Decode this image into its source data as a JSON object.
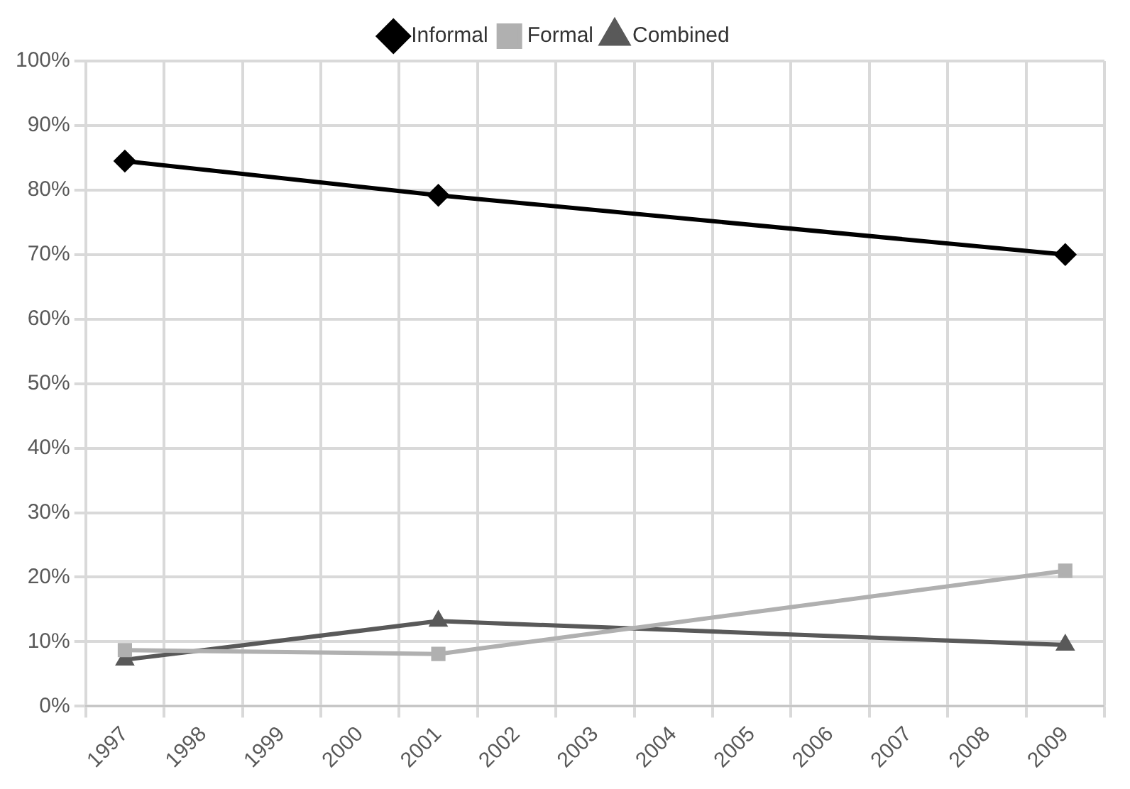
{
  "chart_data": {
    "type": "line",
    "categories": [
      "1997",
      "1998",
      "1999",
      "2000",
      "2001",
      "2002",
      "2003",
      "2004",
      "2005",
      "2006",
      "2007",
      "2008",
      "2009"
    ],
    "series": [
      {
        "name": "Informal",
        "color": "#000000",
        "marker": "diamond",
        "values": [
          84.5,
          null,
          null,
          null,
          79.2,
          null,
          null,
          null,
          null,
          null,
          null,
          null,
          70
        ]
      },
      {
        "name": "Formal",
        "color": "#b0b0b0",
        "marker": "square",
        "values": [
          8.7,
          null,
          null,
          null,
          8.1,
          null,
          null,
          null,
          null,
          null,
          null,
          null,
          21
        ]
      },
      {
        "name": "Combined",
        "color": "#595959",
        "marker": "triangle",
        "values": [
          7.2,
          null,
          null,
          null,
          13.2,
          null,
          null,
          null,
          null,
          null,
          null,
          null,
          9.5
        ]
      }
    ],
    "ylim": [
      0,
      100
    ],
    "yticks": [
      {
        "value": 0,
        "label": "0%"
      },
      {
        "value": 10,
        "label": "10%"
      },
      {
        "value": 20,
        "label": "20%"
      },
      {
        "value": 30,
        "label": "30%"
      },
      {
        "value": 40,
        "label": "40%"
      },
      {
        "value": 50,
        "label": "50%"
      },
      {
        "value": 60,
        "label": "60%"
      },
      {
        "value": 70,
        "label": "70%"
      },
      {
        "value": 80,
        "label": "80%"
      },
      {
        "value": 90,
        "label": "90%"
      },
      {
        "value": 100,
        "label": "100%"
      }
    ],
    "grid": true,
    "legend": "top",
    "line_style": "solid"
  }
}
